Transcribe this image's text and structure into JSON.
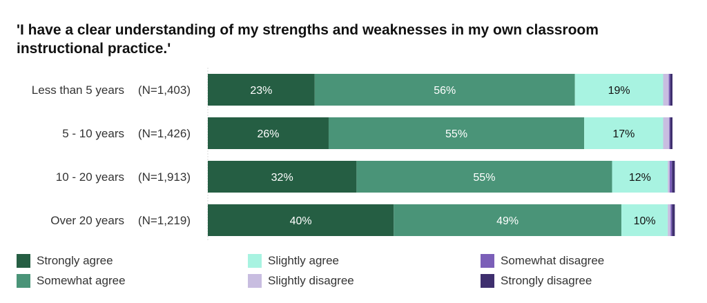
{
  "title": "'I have a clear understanding of my strengths and weaknesses in my own classroom instructional practice.'",
  "chart_data": {
    "type": "bar",
    "orientation": "horizontal",
    "stacked": true,
    "title": "'I have a clear understanding of my strengths and weaknesses in my own classroom instructional practice.'",
    "xlim": [
      0,
      100
    ],
    "categories": [
      {
        "label": "Less than 5 years",
        "n": "(N=1,403)"
      },
      {
        "label": "5 - 10 years",
        "n": "(N=1,426)"
      },
      {
        "label": "10 - 20 years",
        "n": "(N=1,913)"
      },
      {
        "label": "Over 20 years",
        "n": "(N=1,219)"
      }
    ],
    "series": [
      {
        "name": "Strongly agree",
        "color": "#255e43",
        "label_color": "#ffffff",
        "values": [
          23,
          26,
          32,
          40
        ],
        "labels": [
          "23%",
          "26%",
          "32%",
          "40%"
        ]
      },
      {
        "name": "Somewhat agree",
        "color": "#4a9478",
        "label_color": "#ffffff",
        "values": [
          56,
          55,
          55,
          49
        ],
        "labels": [
          "56%",
          "55%",
          "55%",
          "49%"
        ]
      },
      {
        "name": "Slightly agree",
        "color": "#a8f3e1",
        "label_color": "#111111",
        "values": [
          19,
          17,
          12,
          10
        ],
        "labels": [
          "19%",
          "17%",
          "12%",
          "10%"
        ]
      },
      {
        "name": "Slightly disagree",
        "color": "#c8bde0",
        "label_color": "#111111",
        "values": [
          1.2,
          1.3,
          0.4,
          0.6
        ],
        "labels": [
          "",
          "",
          "",
          ""
        ]
      },
      {
        "name": "Somewhat disagree",
        "color": "#7b5fb8",
        "label_color": "#ffffff",
        "values": [
          0.3,
          0.2,
          0.5,
          0.3
        ],
        "labels": [
          "",
          "",
          "",
          ""
        ]
      },
      {
        "name": "Strongly disagree",
        "color": "#3e2f6e",
        "label_color": "#ffffff",
        "values": [
          0.5,
          0.5,
          0.6,
          0.6
        ],
        "labels": [
          "",
          "",
          "",
          ""
        ]
      }
    ]
  },
  "legend": [
    {
      "name": "Strongly agree",
      "color": "#255e43"
    },
    {
      "name": "Somewhat agree",
      "color": "#4a9478"
    },
    {
      "name": "Slightly agree",
      "color": "#a8f3e1"
    },
    {
      "name": "Slightly disagree",
      "color": "#c8bde0"
    },
    {
      "name": "Somewhat disagree",
      "color": "#7b5fb8"
    },
    {
      "name": "Strongly disagree",
      "color": "#3e2f6e"
    }
  ]
}
